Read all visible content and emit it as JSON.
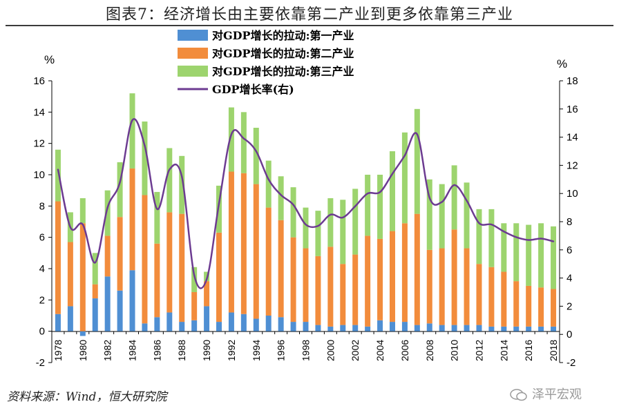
{
  "title": "图表7：经济增长由主要依靠第二产业到更多依靠第三产业",
  "source": "资料来源：Wind，恒大研究院",
  "watermark": "泽平宏观",
  "chart_data": {
    "type": "bar",
    "stacked": true,
    "left_unit": "%",
    "right_unit": "%",
    "ylim_left": [
      -2,
      16
    ],
    "yticks_left": [
      -2,
      0,
      2,
      4,
      6,
      8,
      10,
      12,
      14,
      16
    ],
    "ylim_right": [
      -2,
      18
    ],
    "yticks_right": [
      -2,
      0,
      2,
      4,
      6,
      8,
      10,
      12,
      14,
      16,
      18
    ],
    "xtick_labels": [
      "1978",
      "1980",
      "1982",
      "1984",
      "1986",
      "1988",
      "1990",
      "1992",
      "1994",
      "1996",
      "1998",
      "2000",
      "2002",
      "2004",
      "2006",
      "2008",
      "2010",
      "2012",
      "2014",
      "2016",
      "2018"
    ],
    "categories": [
      "1978",
      "1979",
      "1980",
      "1981",
      "1982",
      "1983",
      "1984",
      "1985",
      "1986",
      "1987",
      "1988",
      "1989",
      "1990",
      "1991",
      "1992",
      "1993",
      "1994",
      "1995",
      "1996",
      "1997",
      "1998",
      "1999",
      "2000",
      "2001",
      "2002",
      "2003",
      "2004",
      "2005",
      "2006",
      "2007",
      "2008",
      "2009",
      "2010",
      "2011",
      "2012",
      "2013",
      "2014",
      "2015",
      "2016",
      "2017",
      "2018"
    ],
    "legend_position": "top-center",
    "series": [
      {
        "name": "对GDP增长的拉动:第一产业",
        "kind": "bar",
        "axis": "left",
        "color": "#4f8fd3",
        "values": [
          1.1,
          1.6,
          -0.3,
          2.1,
          3.5,
          2.6,
          3.9,
          0.5,
          0.9,
          1.2,
          0.6,
          0.7,
          1.6,
          0.6,
          1.2,
          1.1,
          0.8,
          1.0,
          0.9,
          0.6,
          0.6,
          0.4,
          0.3,
          0.4,
          0.4,
          0.3,
          0.7,
          0.6,
          0.6,
          0.4,
          0.5,
          0.4,
          0.4,
          0.4,
          0.4,
          0.3,
          0.3,
          0.3,
          0.3,
          0.3,
          0.3
        ]
      },
      {
        "name": "对GDP增长的拉动:第二产业",
        "kind": "bar",
        "axis": "left",
        "color": "#f28c3c",
        "values": [
          7.2,
          4.1,
          6.9,
          0.9,
          2.6,
          4.7,
          6.5,
          8.2,
          4.7,
          6.4,
          6.9,
          1.8,
          1.6,
          5.7,
          9.0,
          9.0,
          8.6,
          6.9,
          6.2,
          5.4,
          4.7,
          4.4,
          5.1,
          3.9,
          4.5,
          5.8,
          5.2,
          5.8,
          6.3,
          7.1,
          4.7,
          4.9,
          6.1,
          4.9,
          3.9,
          3.8,
          3.5,
          2.9,
          2.6,
          2.5,
          2.4
        ]
      },
      {
        "name": "对GDP增长的拉动:第三产业",
        "kind": "bar",
        "axis": "left",
        "color": "#9dd46e",
        "values": [
          3.3,
          1.9,
          1.6,
          2.0,
          2.9,
          3.5,
          4.8,
          4.7,
          3.3,
          4.1,
          3.7,
          1.6,
          0.6,
          3.0,
          4.1,
          3.9,
          3.6,
          3.0,
          2.8,
          3.2,
          2.6,
          2.9,
          3.1,
          4.1,
          4.2,
          3.9,
          4.1,
          5.1,
          5.8,
          6.7,
          4.5,
          4.1,
          4.1,
          4.2,
          3.5,
          3.7,
          3.1,
          3.7,
          3.9,
          4.1,
          4.0
        ]
      },
      {
        "name": "GDP增长率(右)",
        "kind": "line",
        "axis": "right",
        "color": "#6c3b91",
        "values": [
          11.7,
          7.6,
          7.8,
          5.1,
          9.0,
          10.8,
          15.2,
          13.4,
          8.9,
          11.7,
          11.2,
          4.2,
          3.9,
          9.3,
          14.2,
          13.9,
          13.0,
          11.0,
          9.9,
          9.2,
          7.8,
          7.7,
          8.5,
          8.3,
          9.1,
          10.0,
          10.1,
          11.4,
          12.7,
          14.2,
          9.7,
          9.4,
          10.6,
          9.5,
          7.9,
          7.8,
          7.3,
          6.9,
          6.7,
          6.8,
          6.6
        ]
      }
    ]
  }
}
